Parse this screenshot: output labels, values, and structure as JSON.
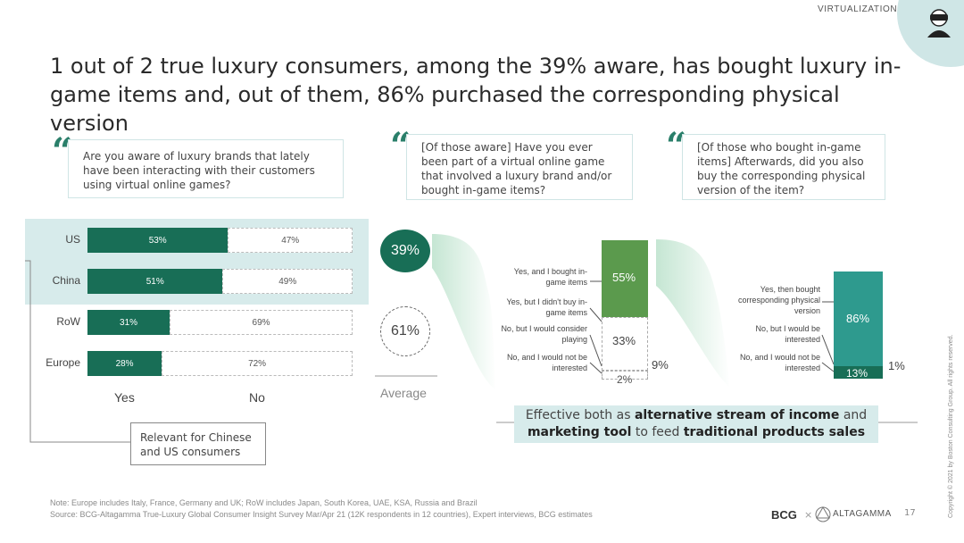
{
  "header": {
    "section": "VIRTUALIZATION",
    "title": "1 out of 2 true luxury consumers, among the 39% aware, has bought luxury in-game items and, out of them, 86% purchased the corresponding physical version"
  },
  "questions": [
    "Are you aware of luxury brands that lately have been interacting with their customers using virtual online games?",
    "[Of those aware] Have you ever been part of a virtual online game that involved a luxury brand and/or bought in-game items?",
    "[Of those who bought in-game items]  Afterwards, did you also buy the corresponding physical version of the item?"
  ],
  "chart_data": [
    {
      "type": "bar",
      "categories": [
        "US",
        "China",
        "RoW",
        "Europe"
      ],
      "series": [
        {
          "name": "Yes",
          "values": [
            53,
            51,
            31,
            28
          ],
          "labels": [
            "53%",
            "51%",
            "31%",
            "28%"
          ]
        },
        {
          "name": "No",
          "values": [
            47,
            49,
            69,
            72
          ],
          "labels": [
            "47%",
            "49%",
            "69%",
            "72%"
          ]
        }
      ],
      "xlabels": [
        "Yes",
        "No"
      ],
      "stacked": true,
      "orientation": "horizontal",
      "average": {
        "label": "Average",
        "aware": "39%",
        "not_aware": "61%"
      }
    },
    {
      "type": "bar",
      "stacked": true,
      "segments": [
        {
          "label": "Yes, and I bought in-game items",
          "value": 55,
          "text": "55%"
        },
        {
          "label": "Yes, but I didn't buy in-game items",
          "value": 0,
          "text": ""
        },
        {
          "label": "No, but I would consider playing",
          "value": 33,
          "text": "33%"
        },
        {
          "label": "No, and I would not be interested",
          "value": 2,
          "text": "2%"
        },
        {
          "label": "",
          "value": 9,
          "text": "9%"
        }
      ]
    },
    {
      "type": "bar",
      "stacked": true,
      "segments": [
        {
          "label": "Yes, then bought corresponding physical version",
          "value": 86,
          "text": "86%"
        },
        {
          "label": "No, but I would be interested",
          "value": 13,
          "text": "13%"
        },
        {
          "label": "No, and I would not be interested",
          "value": 1,
          "text": "1%"
        }
      ]
    }
  ],
  "callout": {
    "p1": "Effective both as ",
    "b1": "alternative stream of income",
    "p2": " and",
    "b2": "marketing tool",
    "p3": " to feed ",
    "b3": "traditional products sales"
  },
  "relevant_note": "Relevant for Chinese and US consumers",
  "footer": {
    "note": "Note: Europe includes Italy, France, Germany and UK; RoW includes Japan, South Korea, UAE, KSA, Russia and Brazil",
    "source": "Source: BCG-Altagamma True-Luxury Global Consumer Insight Survey Mar/Apr 21 (12K respondents in 12 countries), Expert interviews, BCG estimates",
    "logo1": "BCG",
    "logo_sep": "×",
    "logo2": "ALTAGAMMA",
    "page": "17",
    "copyright": "Copyright © 2021 by Boston Consulting Group. All rights reserved."
  },
  "colors": {
    "dark_green": "#186e56",
    "mid_green": "#5b9a4d",
    "teal": "#2e9a8e",
    "light_teal": "#d7ebeb"
  },
  "icons": [
    "vr-headset-avatar-icon",
    "quote-icon"
  ]
}
